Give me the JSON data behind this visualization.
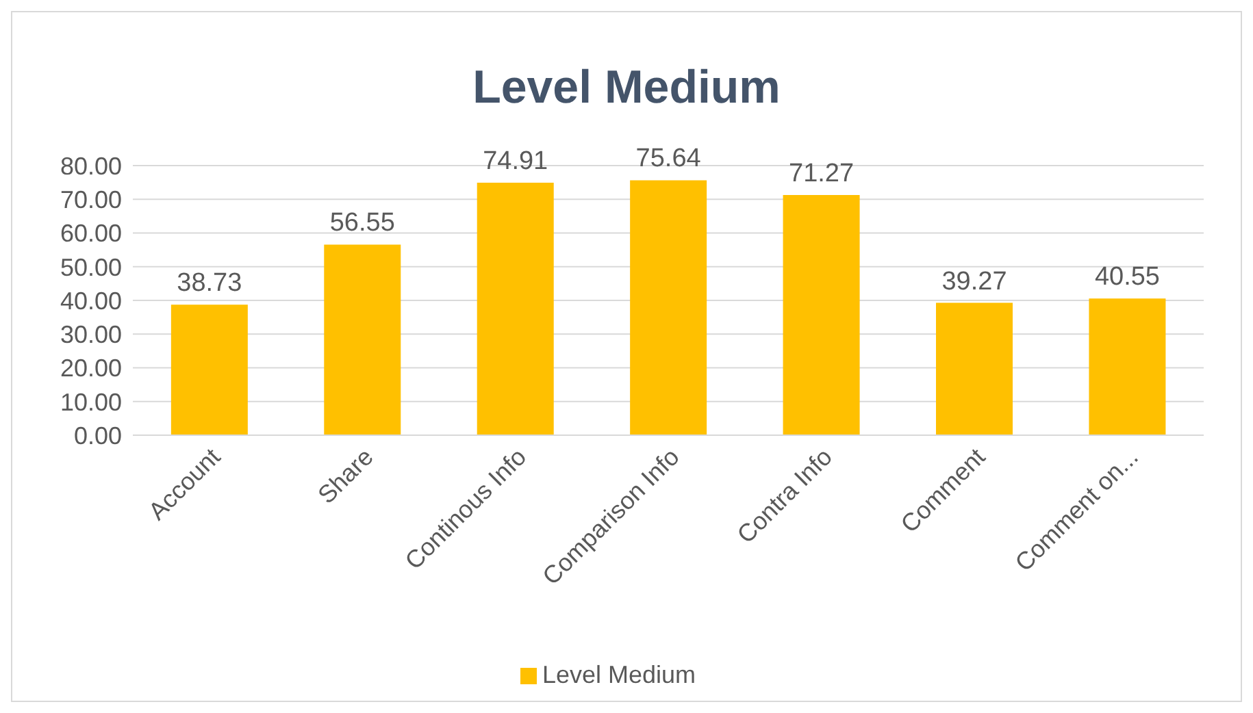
{
  "chart_data": {
    "type": "bar",
    "title": "Level Medium",
    "categories": [
      "Account",
      "Share",
      "Continous Info",
      "Comparison Info",
      "Contra Info",
      "Comment",
      "Comment on..."
    ],
    "series": [
      {
        "name": "Level Medium",
        "color": "#ffc000",
        "values": [
          38.73,
          56.55,
          74.91,
          75.64,
          71.27,
          39.27,
          40.55
        ]
      }
    ],
    "ylim": [
      0,
      80
    ],
    "yticks": [
      {
        "value": 0,
        "label": "0.00"
      },
      {
        "value": 10,
        "label": "10.00"
      },
      {
        "value": 20,
        "label": "20.00"
      },
      {
        "value": 30,
        "label": "30.00"
      },
      {
        "value": 40,
        "label": "40.00"
      },
      {
        "value": 50,
        "label": "50.00"
      },
      {
        "value": 60,
        "label": "60.00"
      },
      {
        "value": 70,
        "label": "70.00"
      },
      {
        "value": 80,
        "label": "80.00"
      }
    ],
    "grid": "y",
    "legend": "bottom",
    "data_labels": true
  }
}
